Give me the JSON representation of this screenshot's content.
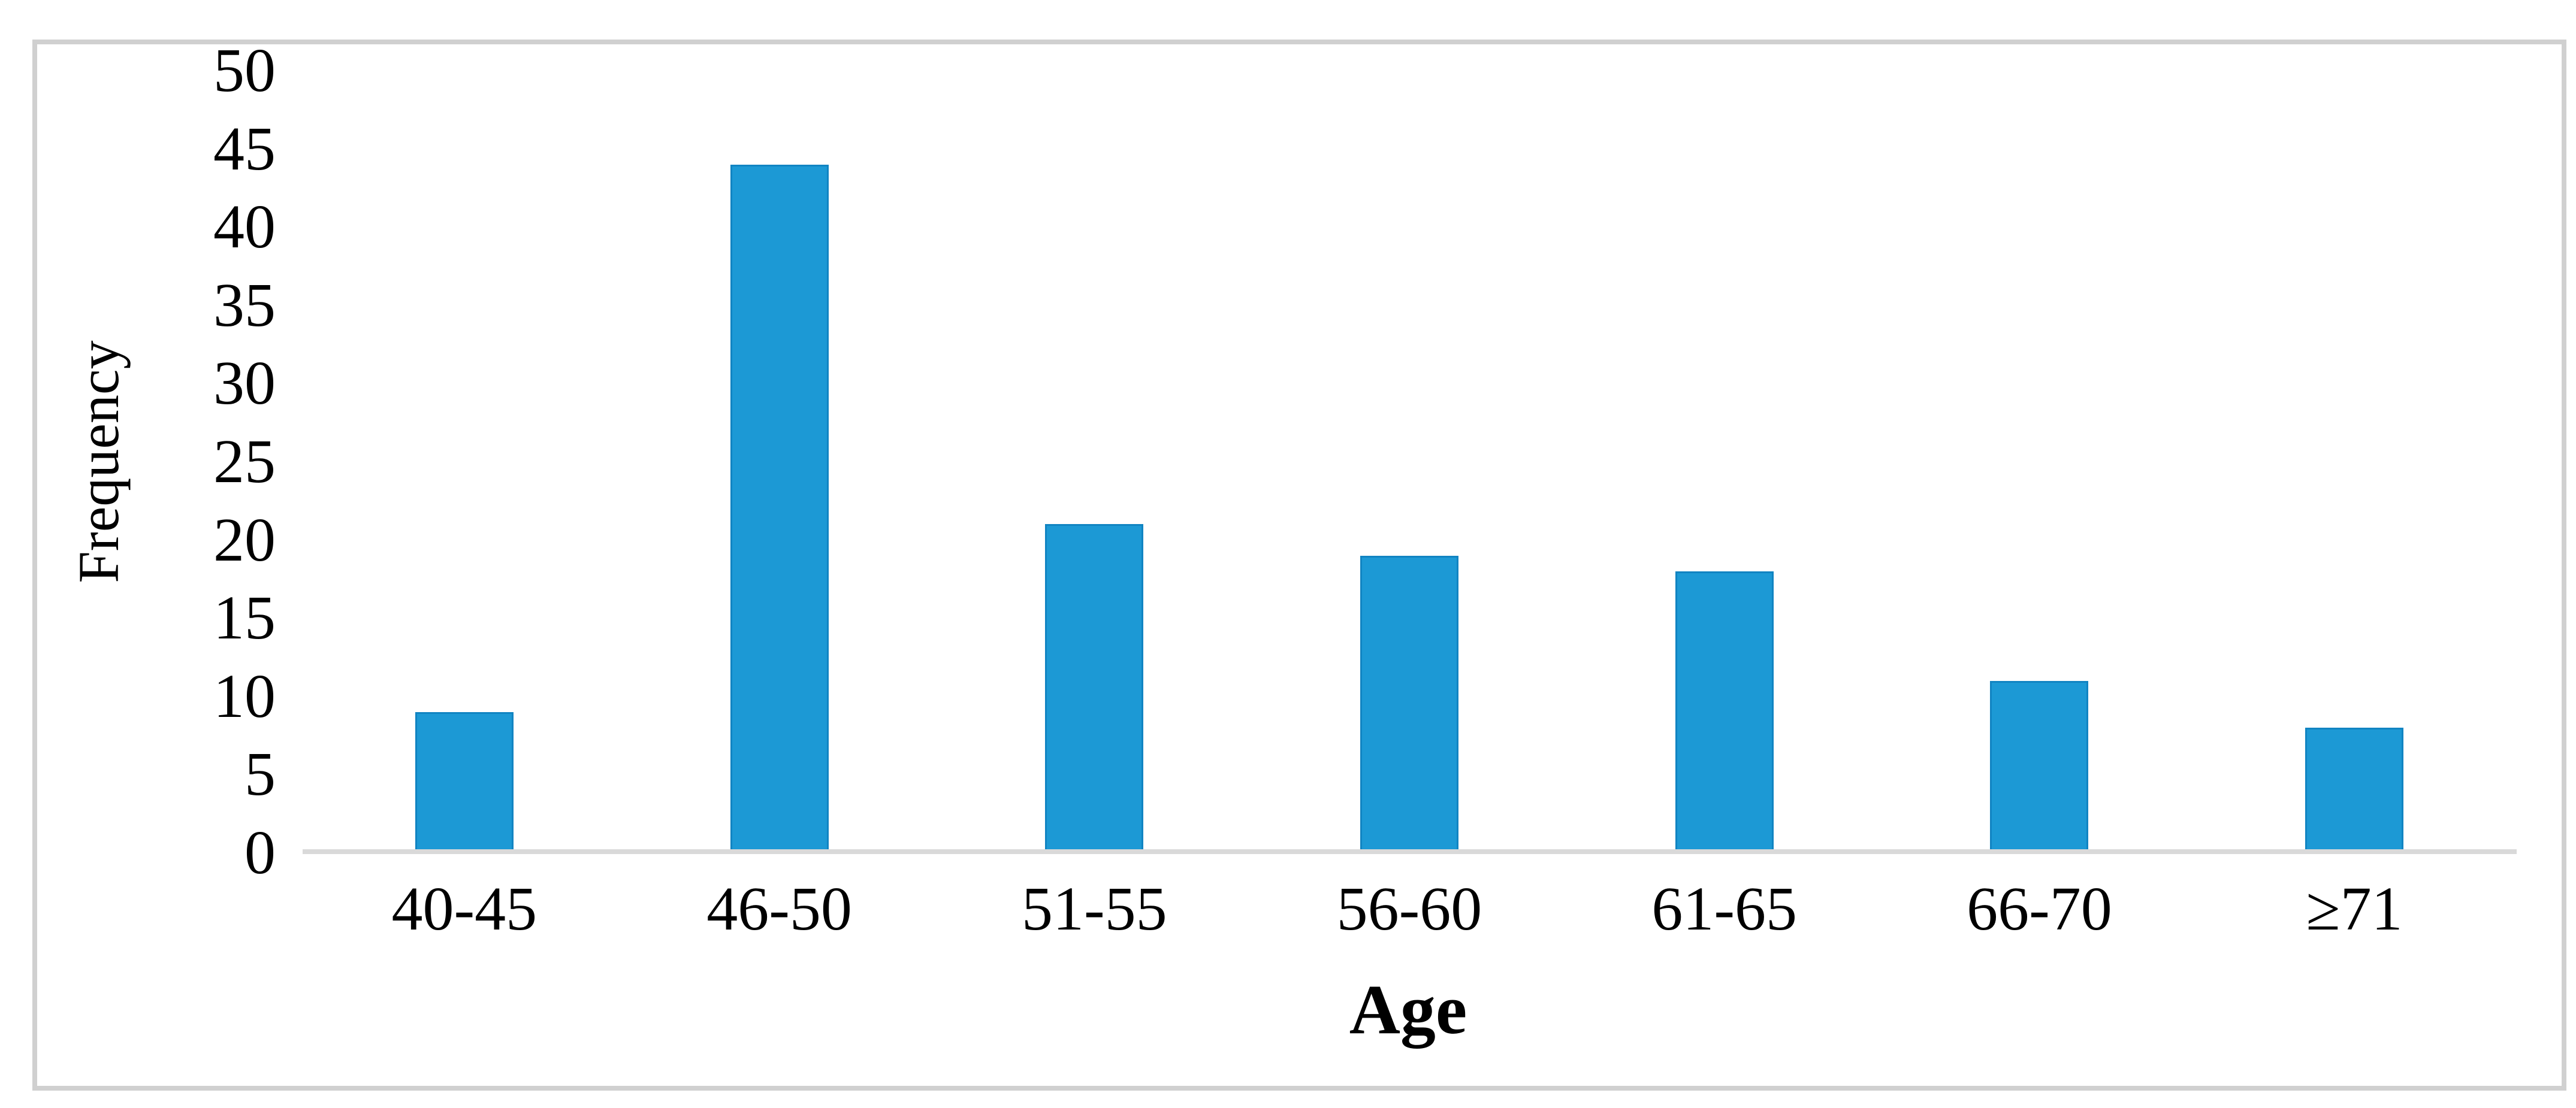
{
  "chart_data": {
    "type": "bar",
    "title": "",
    "categories": [
      "40-45",
      "46-50",
      "51-55",
      "56-60",
      "61-65",
      "66-70",
      "≥71"
    ],
    "values": [
      9,
      44,
      21,
      19,
      18,
      11,
      8
    ],
    "xlabel": "Age",
    "ylabel": "Frequency",
    "ylim": [
      0,
      50
    ],
    "y_ticks": [
      0,
      5,
      10,
      15,
      20,
      25,
      30,
      35,
      40,
      45,
      50
    ],
    "grid": false,
    "legend": "none",
    "bar_color": "#1c99d5",
    "bar_edge_color": "#1184c2",
    "baseline_color": "#d9d9d9",
    "frame_color": "#d0d0d0",
    "text_color": "#000000"
  }
}
